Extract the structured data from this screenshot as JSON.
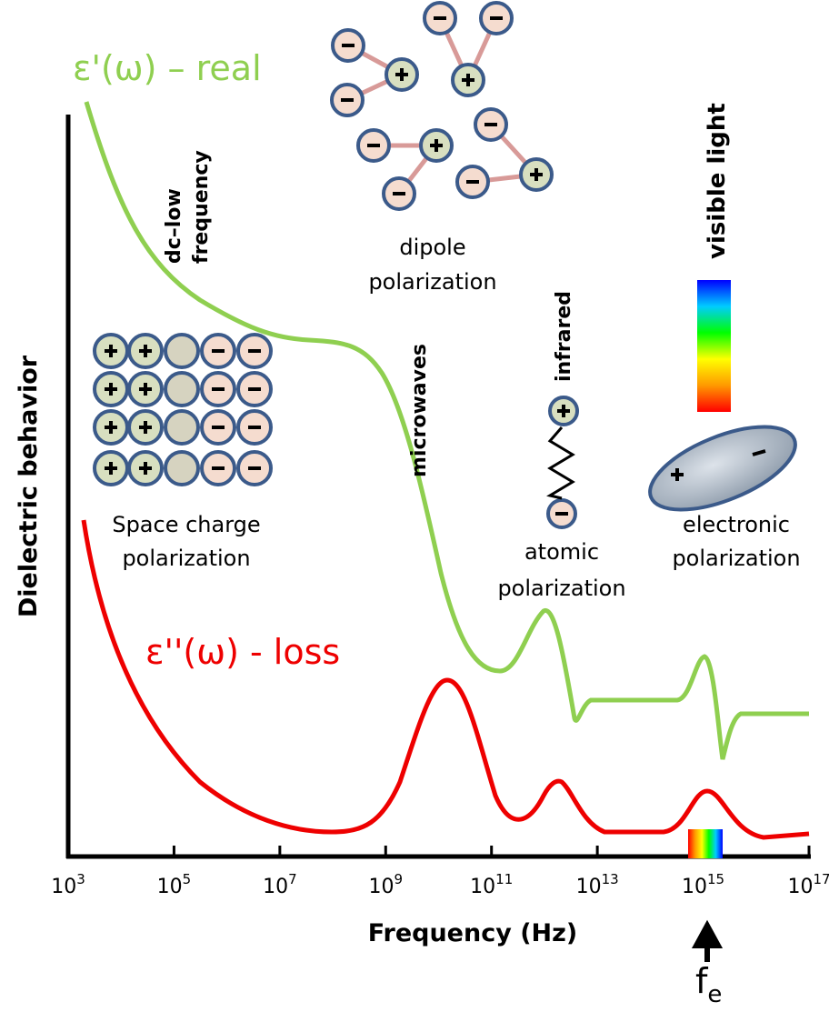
{
  "axes": {
    "y_label": "Dielectric behavior",
    "x_label": "Frequency (Hz)",
    "x_ticks": [
      {
        "base": "10",
        "exponent": "3"
      },
      {
        "base": "10",
        "exponent": "5"
      },
      {
        "base": "10",
        "exponent": "7"
      },
      {
        "base": "10",
        "exponent": "9"
      },
      {
        "base": "10",
        "exponent": "11"
      },
      {
        "base": "10",
        "exponent": "13"
      },
      {
        "base": "10",
        "exponent": "15"
      },
      {
        "base": "10",
        "exponent": "17"
      }
    ]
  },
  "curves": {
    "real": "ε'(ω) – real",
    "loss": "ε''(ω) - loss"
  },
  "regions": {
    "dc_low": [
      "dc–low",
      "frequency"
    ],
    "microwaves": "microwaves",
    "infrared": "infrared",
    "visible": "visible light"
  },
  "mechanisms": {
    "dipole": [
      "dipole",
      "polarization"
    ],
    "space_charge": [
      "Space charge",
      "polarization"
    ],
    "atomic": [
      "atomic",
      "polarization"
    ],
    "electronic": [
      "electronic",
      "polarization"
    ]
  },
  "marker": {
    "base": "f",
    "subscript": "e"
  }
}
